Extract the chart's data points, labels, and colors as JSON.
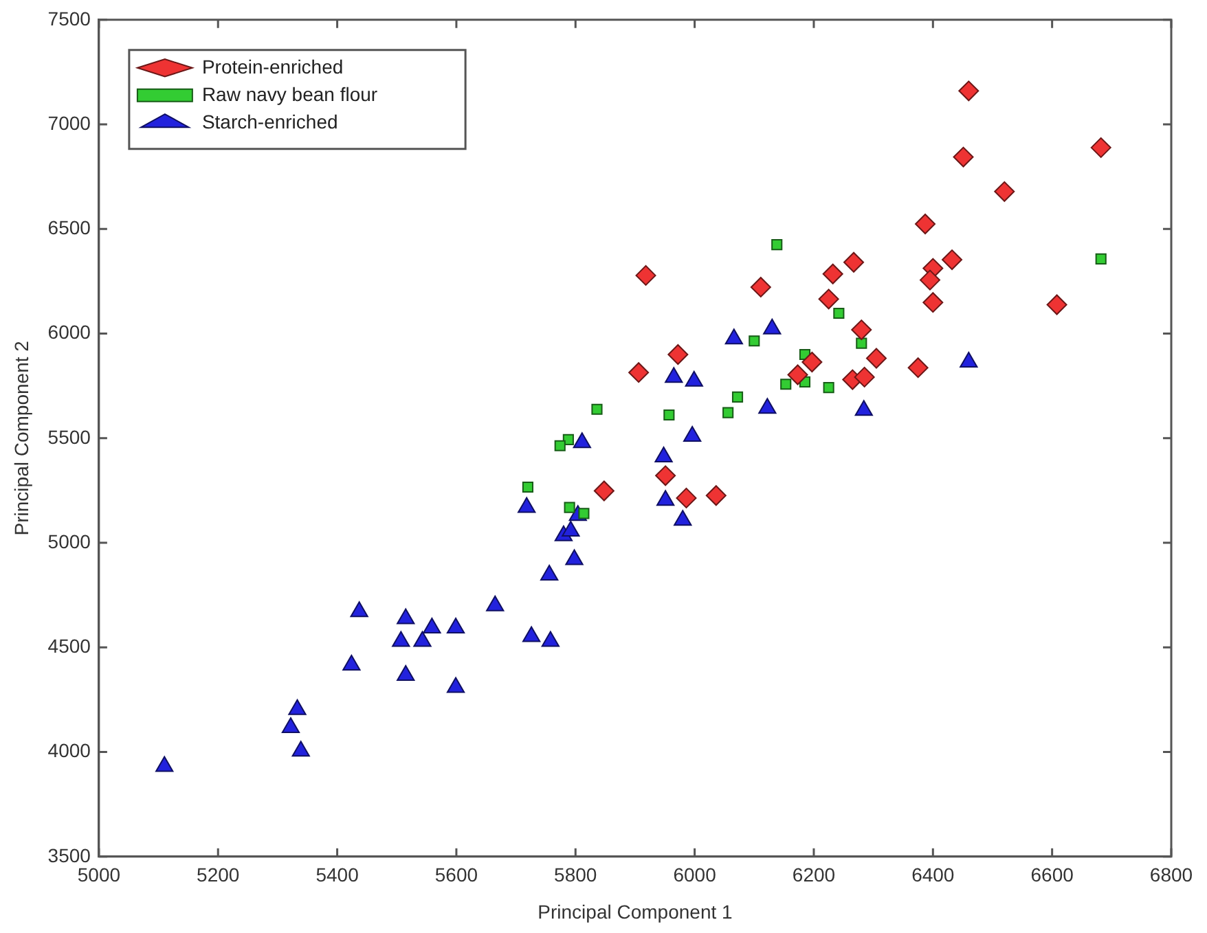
{
  "chart_data": {
    "type": "scatter",
    "xlabel": "Principal Component 1",
    "ylabel": "Principal Component 2",
    "xlim": [
      5000,
      6800
    ],
    "ylim": [
      3500,
      7500
    ],
    "xticks": [
      5000,
      5200,
      5400,
      5600,
      5800,
      6000,
      6200,
      6400,
      6600,
      6800
    ],
    "yticks": [
      3500,
      4000,
      4500,
      5000,
      5500,
      6000,
      6500,
      7000,
      7500
    ],
    "grid": false,
    "legend": "top left",
    "series": [
      {
        "name": "Protein-enriched",
        "color": "#ee3333",
        "marker": "diamond",
        "x": [
          6460,
          6451,
          6682,
          6520,
          6387,
          6432,
          6267,
          6232,
          6400,
          6395,
          6400,
          6608,
          6225,
          6111,
          6280,
          6305,
          6375,
          6197,
          6265,
          6285,
          6173,
          5918,
          5972,
          5906,
          5848,
          5951,
          5986,
          6036
        ],
        "values": [
          7160,
          6844,
          6889,
          6679,
          6524,
          6353,
          6341,
          6285,
          6312,
          6256,
          6149,
          6138,
          6165,
          6222,
          6018,
          5882,
          5837,
          5864,
          5780,
          5792,
          5803,
          6278,
          5900,
          5814,
          5248,
          5321,
          5214,
          5226
        ]
      },
      {
        "name": "Raw navy bean flour",
        "color": "#33cc33",
        "marker": "square",
        "x": [
          6138,
          6682,
          6242,
          6280,
          6185,
          6153,
          6185,
          6225,
          6100,
          6072,
          6056,
          5957,
          5836,
          5788,
          5774,
          5720,
          5790,
          5814
        ],
        "values": [
          6425,
          6357,
          6097,
          5954,
          5900,
          5758,
          5769,
          5742,
          5965,
          5697,
          5622,
          5611,
          5638,
          5493,
          5464,
          5266,
          5169,
          5140
        ]
      },
      {
        "name": "Starch-enriched",
        "color": "#2222dd",
        "marker": "triangle",
        "x": [
          5110,
          5333,
          5322,
          5339,
          5424,
          5437,
          5515,
          5507,
          5515,
          5543,
          5559,
          5599,
          5599,
          5665,
          5726,
          5758,
          5756,
          5798,
          5780,
          5792,
          5804,
          5718,
          5811,
          5951,
          5980,
          5948,
          5996,
          5965,
          5999,
          6066,
          6130,
          6122,
          6284,
          6460
        ],
        "values": [
          3931,
          4203,
          4117,
          4004,
          4416,
          4671,
          4637,
          4529,
          4366,
          4529,
          4593,
          4593,
          4309,
          4699,
          4552,
          4529,
          4846,
          4920,
          5034,
          5056,
          5131,
          5169,
          5479,
          5203,
          5108,
          5411,
          5509,
          5791,
          5773,
          5975,
          6022,
          5643,
          5633,
          5864
        ]
      }
    ]
  }
}
